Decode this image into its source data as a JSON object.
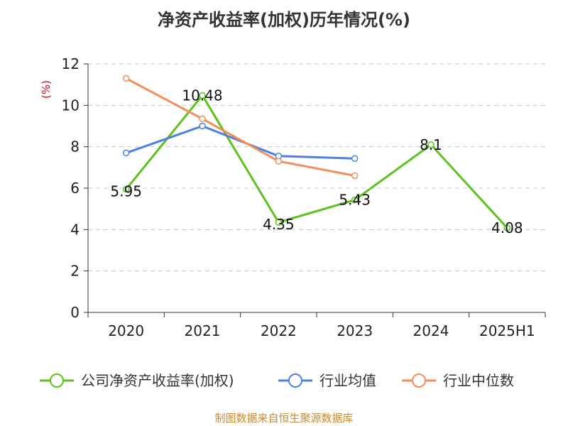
{
  "title": "净资产收益率(加权)历年情况(%)",
  "source": "制图数据来自恒生聚源数据库",
  "chart_data": {
    "type": "line",
    "title": "净资产收益率(加权)历年情况(%)",
    "ylabel": "(%)",
    "xlabel": "",
    "ylim": [
      0,
      12
    ],
    "yticks": [
      0,
      2,
      4,
      6,
      8,
      10,
      12
    ],
    "grid": true,
    "legend_position": "bottom",
    "categories": [
      "2020",
      "2021",
      "2022",
      "2023",
      "2024",
      "2025H1"
    ],
    "series": [
      {
        "name": "公司净资产收益率(加权)",
        "color": "#5cc21f",
        "values": [
          5.95,
          10.48,
          4.35,
          5.43,
          8.1,
          4.08
        ],
        "labels": [
          "5.95",
          "10.48",
          "4.35",
          "5.43",
          "8.1",
          "4.08"
        ]
      },
      {
        "name": "行业均值",
        "color": "#4f7fe0",
        "values": [
          7.7,
          9.0,
          7.55,
          7.43,
          null,
          null
        ]
      },
      {
        "name": "行业中位数",
        "color": "#f58d5a",
        "values": [
          11.3,
          9.35,
          7.3,
          6.6,
          null,
          null
        ]
      }
    ]
  }
}
